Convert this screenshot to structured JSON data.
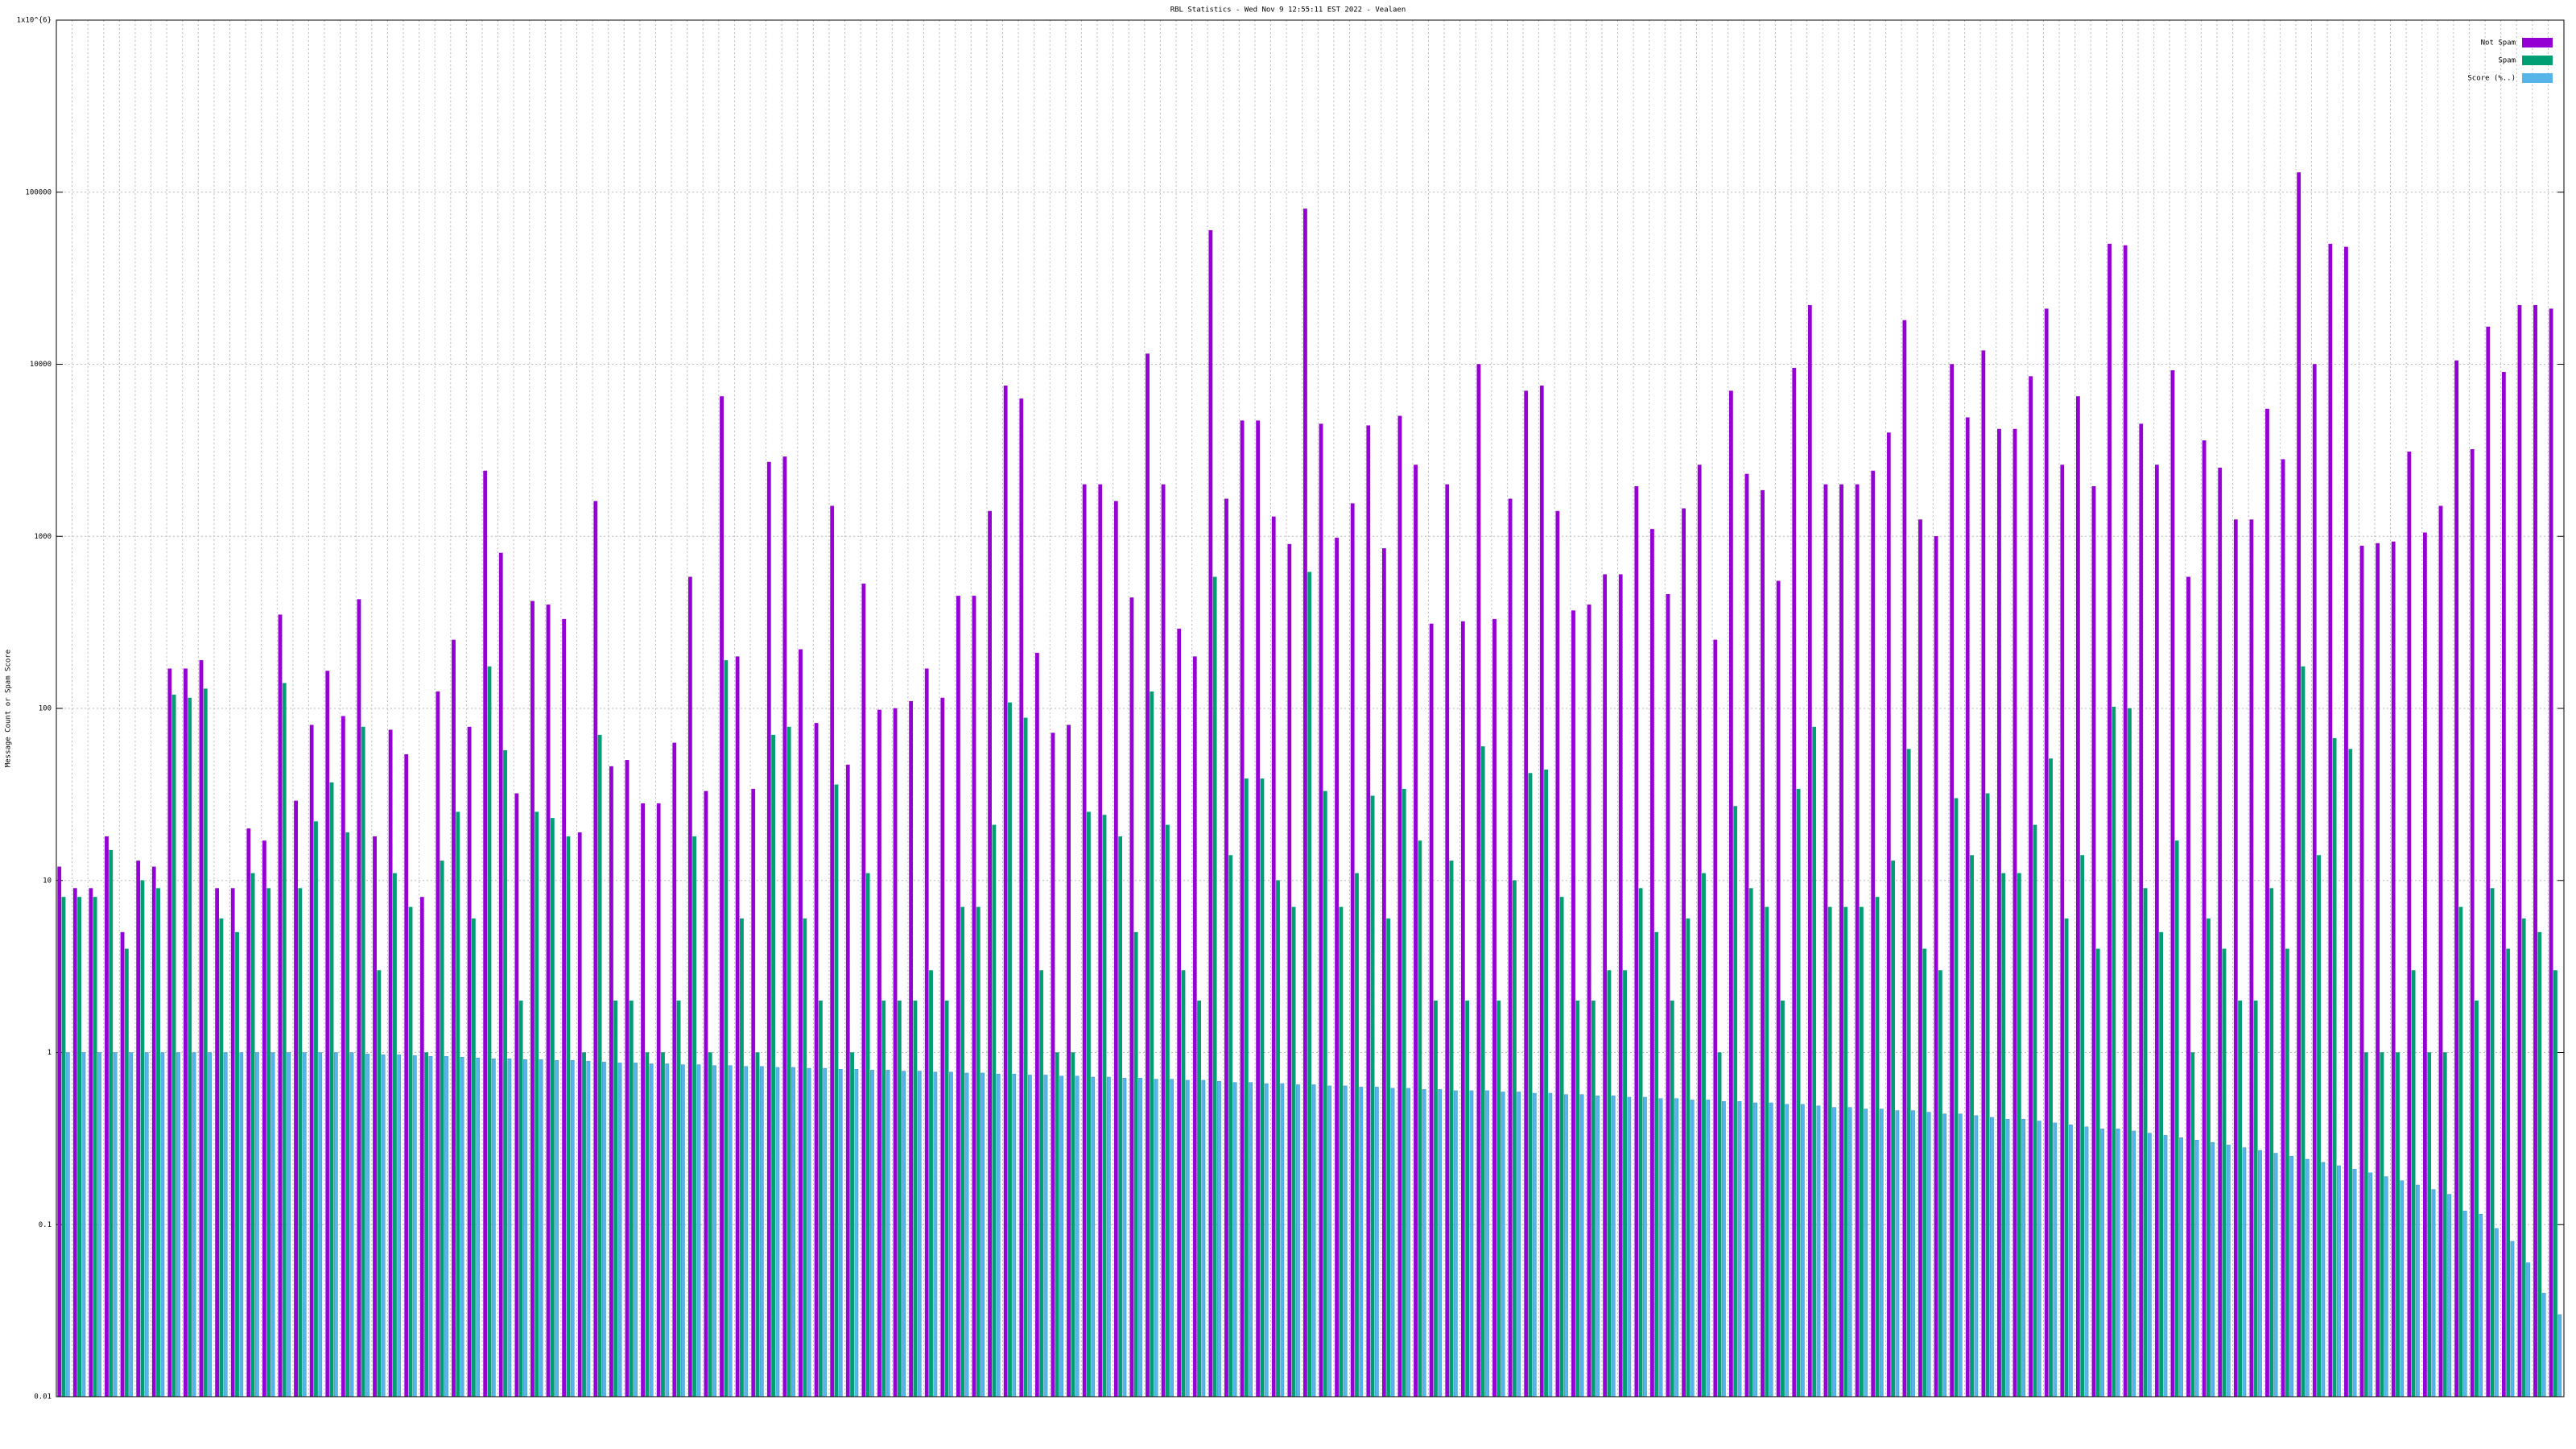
{
  "chart_data": {
    "type": "bar",
    "title": "RBL Statistics - Wed Nov  9 12:55:11 EST 2022 - Vealaen",
    "y_label": "Message Count or Spam Score",
    "log_y": true,
    "grid": true,
    "legend": "top-right",
    "ylim": [
      0.01,
      1000000
    ],
    "yticks": [
      0.01,
      0.1,
      1,
      10,
      100,
      1000,
      10000,
      100000,
      {
        "value": 1000000,
        "label": "1x10^{6}"
      }
    ],
    "series": [
      {
        "name": "Not Spam",
        "color": "#9400d3",
        "values": [
          12,
          9,
          9,
          18,
          5,
          13,
          12,
          170,
          170,
          190,
          9,
          9,
          20,
          17,
          350,
          29,
          80,
          165,
          90,
          430,
          18,
          75,
          54,
          8,
          125,
          250,
          78,
          2400,
          800,
          32,
          420,
          400,
          330,
          19,
          1600,
          46,
          50,
          28,
          28,
          63,
          580,
          33,
          6500,
          200,
          34,
          2700,
          2900,
          220,
          82,
          1500,
          47,
          530,
          98,
          100,
          110,
          170,
          115,
          450,
          450,
          1400,
          7500,
          6300,
          210,
          72,
          80,
          2000,
          2000,
          1600,
          440,
          11500,
          2000,
          290,
          200,
          60000,
          1650,
          4700,
          4700,
          1300,
          900,
          80000,
          4500,
          980,
          1550,
          4400,
          850,
          5000,
          2600,
          310,
          2000,
          320,
          10000,
          330,
          1650,
          7000,
          7500,
          1400,
          370,
          400,
          600,
          600,
          1950,
          1100,
          460,
          1450,
          2600,
          250,
          7000,
          2300,
          1850,
          550,
          9500,
          22000,
          2000,
          2000,
          2000,
          2400,
          4000,
          18000,
          1250,
          1000,
          10000,
          4900,
          12000,
          4200,
          4200,
          8500,
          21000,
          2600,
          6500,
          1950,
          50000,
          49000,
          4500,
          2600,
          9200,
          580,
          3600,
          2500,
          1250,
          1250,
          5500,
          2800,
          130000,
          10000,
          50000,
          48000,
          880,
          910,
          930,
          3100,
          1050,
          1500,
          10500,
          3200,
          16500,
          9000,
          22000,
          22000,
          21000
        ]
      },
      {
        "name": "Spam",
        "color": "#009e73",
        "values": [
          8,
          8,
          8,
          15,
          4,
          10,
          9,
          120,
          115,
          130,
          6,
          5,
          11,
          9,
          140,
          9,
          22,
          37,
          19,
          78,
          3,
          11,
          7,
          1,
          13,
          25,
          6,
          175,
          57,
          2,
          25,
          23,
          18,
          1,
          70,
          2,
          2,
          1,
          1,
          2,
          18,
          1,
          190,
          6,
          1,
          70,
          78,
          6,
          2,
          36,
          1,
          11,
          2,
          2,
          2,
          3,
          2,
          7,
          7,
          21,
          108,
          88,
          3,
          1,
          1,
          25,
          24,
          18,
          5,
          125,
          21,
          3,
          2,
          580,
          14,
          39,
          39,
          10,
          7,
          620,
          33,
          7,
          11,
          31,
          6,
          34,
          17,
          2,
          13,
          2,
          60,
          2,
          10,
          42,
          44,
          8,
          2,
          2,
          3,
          3,
          9,
          5,
          2,
          6,
          11,
          1,
          27,
          9,
          7,
          2,
          34,
          78,
          7,
          7,
          7,
          8,
          13,
          58,
          4,
          3,
          30,
          14,
          32,
          11,
          11,
          21,
          51,
          6,
          14,
          4,
          102,
          100,
          9,
          5,
          17,
          1,
          6,
          4,
          2,
          2,
          9,
          4,
          175,
          14,
          67,
          58,
          1,
          1,
          1,
          3,
          1,
          1,
          7,
          2,
          9,
          4,
          6,
          5,
          3
        ]
      },
      {
        "name": "Score (%..)",
        "color": "#56b4e9",
        "values": [
          1,
          1,
          1,
          1,
          1,
          1,
          1,
          1,
          1,
          1,
          1,
          1,
          1,
          1,
          1,
          1,
          1,
          1,
          1,
          0.98,
          0.97,
          0.97,
          0.96,
          0.95,
          0.95,
          0.94,
          0.93,
          0.92,
          0.92,
          0.91,
          0.91,
          0.9,
          0.9,
          0.89,
          0.88,
          0.87,
          0.87,
          0.86,
          0.86,
          0.85,
          0.85,
          0.84,
          0.84,
          0.83,
          0.83,
          0.82,
          0.82,
          0.81,
          0.81,
          0.8,
          0.8,
          0.79,
          0.79,
          0.78,
          0.78,
          0.77,
          0.77,
          0.76,
          0.76,
          0.75,
          0.75,
          0.74,
          0.74,
          0.73,
          0.73,
          0.72,
          0.72,
          0.71,
          0.71,
          0.7,
          0.7,
          0.69,
          0.69,
          0.68,
          0.67,
          0.67,
          0.66,
          0.66,
          0.65,
          0.65,
          0.64,
          0.64,
          0.63,
          0.63,
          0.62,
          0.62,
          0.61,
          0.61,
          0.6,
          0.6,
          0.6,
          0.59,
          0.59,
          0.58,
          0.58,
          0.57,
          0.57,
          0.56,
          0.56,
          0.55,
          0.55,
          0.54,
          0.54,
          0.53,
          0.53,
          0.52,
          0.52,
          0.51,
          0.51,
          0.5,
          0.5,
          0.49,
          0.48,
          0.48,
          0.47,
          0.47,
          0.46,
          0.46,
          0.45,
          0.44,
          0.44,
          0.43,
          0.42,
          0.41,
          0.41,
          0.4,
          0.39,
          0.38,
          0.37,
          0.36,
          0.36,
          0.35,
          0.34,
          0.33,
          0.32,
          0.31,
          0.3,
          0.29,
          0.28,
          0.27,
          0.26,
          0.25,
          0.24,
          0.23,
          0.22,
          0.21,
          0.2,
          0.19,
          0.18,
          0.17,
          0.16,
          0.15,
          0.12,
          0.115,
          0.095,
          0.08,
          0.06,
          0.04,
          0.03
        ]
      }
    ]
  }
}
